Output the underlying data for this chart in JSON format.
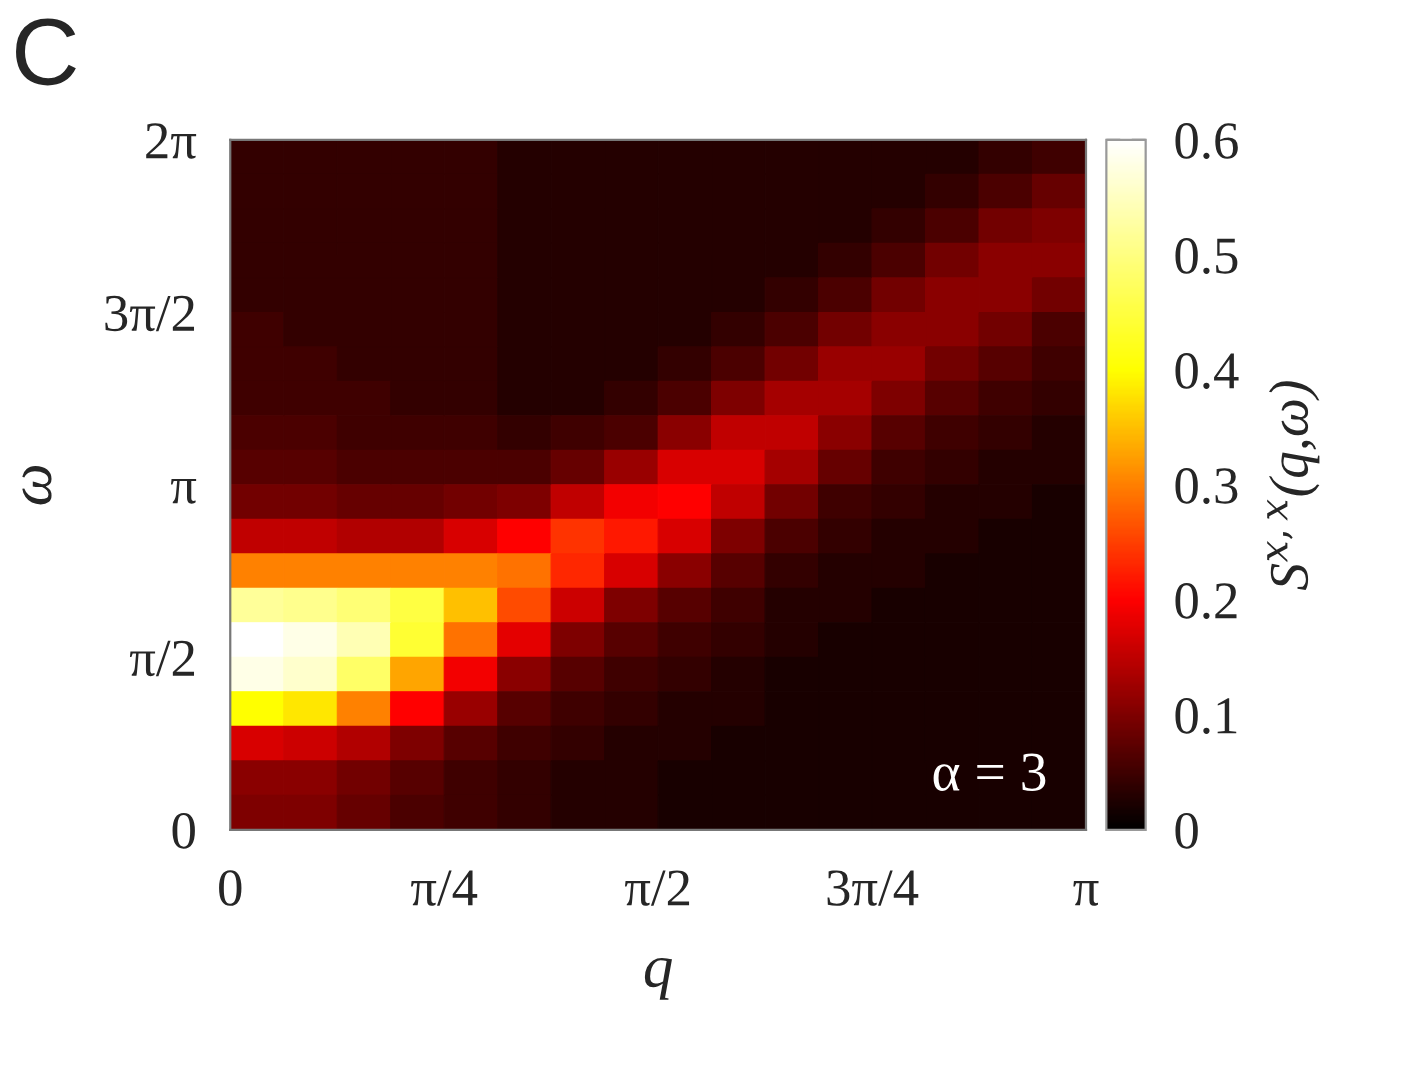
{
  "chart_data": {
    "type": "heatmap",
    "title": "C",
    "xlabel": "q",
    "ylabel": "ω",
    "clabel": "S$^{x,x}$(q,ω)",
    "annotations": [
      "α = 3"
    ],
    "x": [
      0.098,
      0.295,
      0.491,
      0.687,
      0.884,
      1.08,
      1.276,
      1.473,
      1.669,
      1.865,
      2.062,
      2.258,
      2.454,
      2.651,
      2.847,
      3.043
    ],
    "y": [
      6.126,
      5.812,
      5.498,
      5.184,
      4.869,
      4.555,
      4.241,
      3.927,
      3.613,
      3.299,
      2.985,
      2.67,
      2.356,
      2.042,
      1.728,
      1.414,
      1.1,
      0.785,
      0.471,
      0.157
    ],
    "xlim": [
      0,
      3.1416
    ],
    "xticks": [
      0,
      {
        "value": 0.7854,
        "label": "π/4"
      },
      {
        "value": 1.5708,
        "label": "π/2"
      },
      {
        "value": 2.3562,
        "label": "3π/4"
      },
      {
        "value": 3.1416,
        "label": "π"
      }
    ],
    "ylim": [
      0,
      6.2832
    ],
    "yticks": [
      0,
      {
        "value": 1.5708,
        "label": "π/2"
      },
      {
        "value": 3.1416,
        "label": "π"
      },
      {
        "value": 4.7124,
        "label": "3π/2"
      },
      {
        "value": 6.2832,
        "label": "2π"
      }
    ],
    "clim": [
      0,
      0.6
    ],
    "cticks": [
      0,
      0.1,
      0.2,
      0.3,
      0.4,
      0.5,
      0.6
    ],
    "cells": [
      [
        0.04,
        0.04,
        0.04,
        0.04,
        0.04,
        0.03,
        0.03,
        0.03,
        0.03,
        0.03,
        0.03,
        0.03,
        0.03,
        0.03,
        0.04,
        0.05
      ],
      [
        0.04,
        0.04,
        0.04,
        0.04,
        0.04,
        0.03,
        0.03,
        0.03,
        0.03,
        0.03,
        0.03,
        0.03,
        0.03,
        0.04,
        0.06,
        0.08
      ],
      [
        0.04,
        0.04,
        0.04,
        0.04,
        0.04,
        0.03,
        0.03,
        0.03,
        0.03,
        0.03,
        0.03,
        0.03,
        0.04,
        0.06,
        0.09,
        0.1
      ],
      [
        0.04,
        0.04,
        0.04,
        0.04,
        0.04,
        0.03,
        0.03,
        0.03,
        0.03,
        0.03,
        0.03,
        0.04,
        0.06,
        0.09,
        0.11,
        0.11
      ],
      [
        0.04,
        0.04,
        0.04,
        0.04,
        0.04,
        0.03,
        0.03,
        0.03,
        0.03,
        0.03,
        0.04,
        0.06,
        0.09,
        0.11,
        0.11,
        0.09
      ],
      [
        0.05,
        0.04,
        0.04,
        0.04,
        0.04,
        0.03,
        0.03,
        0.03,
        0.03,
        0.04,
        0.06,
        0.09,
        0.11,
        0.11,
        0.09,
        0.06
      ],
      [
        0.05,
        0.05,
        0.04,
        0.04,
        0.04,
        0.03,
        0.03,
        0.03,
        0.04,
        0.06,
        0.09,
        0.12,
        0.12,
        0.09,
        0.07,
        0.05
      ],
      [
        0.05,
        0.05,
        0.05,
        0.04,
        0.04,
        0.03,
        0.03,
        0.04,
        0.06,
        0.1,
        0.13,
        0.13,
        0.1,
        0.07,
        0.05,
        0.04
      ],
      [
        0.06,
        0.06,
        0.05,
        0.05,
        0.05,
        0.04,
        0.05,
        0.06,
        0.11,
        0.15,
        0.15,
        0.11,
        0.07,
        0.05,
        0.04,
        0.03
      ],
      [
        0.07,
        0.07,
        0.06,
        0.06,
        0.06,
        0.06,
        0.08,
        0.12,
        0.17,
        0.17,
        0.13,
        0.08,
        0.05,
        0.04,
        0.03,
        0.03
      ],
      [
        0.09,
        0.09,
        0.08,
        0.08,
        0.09,
        0.1,
        0.15,
        0.19,
        0.2,
        0.15,
        0.09,
        0.05,
        0.04,
        0.03,
        0.03,
        0.02
      ],
      [
        0.15,
        0.15,
        0.14,
        0.14,
        0.17,
        0.2,
        0.24,
        0.22,
        0.17,
        0.1,
        0.06,
        0.04,
        0.03,
        0.03,
        0.02,
        0.02
      ],
      [
        0.3,
        0.3,
        0.3,
        0.3,
        0.3,
        0.29,
        0.23,
        0.17,
        0.11,
        0.07,
        0.04,
        0.03,
        0.03,
        0.02,
        0.02,
        0.02
      ],
      [
        0.52,
        0.51,
        0.49,
        0.45,
        0.35,
        0.26,
        0.16,
        0.1,
        0.07,
        0.05,
        0.03,
        0.03,
        0.02,
        0.02,
        0.02,
        0.02
      ],
      [
        0.6,
        0.58,
        0.54,
        0.44,
        0.29,
        0.18,
        0.1,
        0.07,
        0.05,
        0.04,
        0.03,
        0.02,
        0.02,
        0.02,
        0.02,
        0.02
      ],
      [
        0.58,
        0.56,
        0.48,
        0.33,
        0.19,
        0.11,
        0.07,
        0.05,
        0.04,
        0.03,
        0.02,
        0.02,
        0.02,
        0.02,
        0.02,
        0.02
      ],
      [
        0.4,
        0.38,
        0.3,
        0.2,
        0.12,
        0.07,
        0.05,
        0.04,
        0.03,
        0.03,
        0.02,
        0.02,
        0.02,
        0.02,
        0.02,
        0.02
      ],
      [
        0.17,
        0.16,
        0.14,
        0.1,
        0.07,
        0.05,
        0.04,
        0.03,
        0.03,
        0.02,
        0.02,
        0.02,
        0.02,
        0.02,
        0.02,
        0.02
      ],
      [
        0.11,
        0.11,
        0.09,
        0.07,
        0.05,
        0.04,
        0.03,
        0.03,
        0.02,
        0.02,
        0.02,
        0.02,
        0.02,
        0.02,
        0.02,
        0.02
      ],
      [
        0.1,
        0.1,
        0.08,
        0.06,
        0.05,
        0.04,
        0.03,
        0.03,
        0.02,
        0.02,
        0.02,
        0.02,
        0.02,
        0.02,
        0.02,
        0.02
      ]
    ]
  }
}
